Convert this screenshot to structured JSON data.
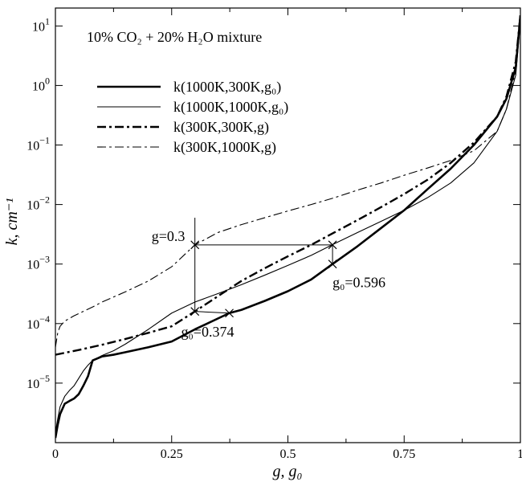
{
  "chart_data": {
    "type": "line",
    "title": "10% CO₂ + 20% H₂O mixture",
    "xlabel": "g, g₀",
    "ylabel": "k, cm⁻¹",
    "xlim": [
      0,
      1
    ],
    "ylim": [
      1e-06,
      20
    ],
    "yscale": "log",
    "grid": false,
    "legend_position": "top-left",
    "xticks": [
      {
        "value": 0,
        "label": "0"
      },
      {
        "value": 0.25,
        "label": "0.25"
      },
      {
        "value": 0.5,
        "label": "0.5"
      },
      {
        "value": 0.75,
        "label": "0.75"
      },
      {
        "value": 1,
        "label": "1"
      }
    ],
    "yticks": [
      {
        "value": 1e-05,
        "base": "10",
        "exp": "−5"
      },
      {
        "value": 0.0001,
        "base": "10",
        "exp": "−4"
      },
      {
        "value": 0.001,
        "base": "10",
        "exp": "−3"
      },
      {
        "value": 0.01,
        "base": "10",
        "exp": "−2"
      },
      {
        "value": 0.1,
        "base": "10",
        "exp": "−1"
      },
      {
        "value": 1,
        "base": "10",
        "exp": "0"
      },
      {
        "value": 10,
        "base": "10",
        "exp": "1"
      }
    ],
    "series": [
      {
        "name": "k(1000K,300K,g₀)",
        "color": "#000000",
        "width": 2.6,
        "dash": "none",
        "x": [
          0,
          0.005,
          0.01,
          0.02,
          0.03,
          0.04,
          0.05,
          0.06,
          0.07,
          0.08,
          0.1,
          0.125,
          0.15,
          0.2,
          0.25,
          0.3,
          0.374,
          0.4,
          0.45,
          0.5,
          0.55,
          0.596,
          0.65,
          0.7,
          0.75,
          0.8,
          0.85,
          0.9,
          0.95,
          0.97,
          0.99,
          1.0
        ],
        "y": [
          1.2e-06,
          2e-06,
          3e-06,
          4.5e-06,
          5e-06,
          5.5e-06,
          6.5e-06,
          9e-06,
          1.3e-05,
          2.4e-05,
          2.8e-05,
          3e-05,
          3.3e-05,
          4e-05,
          5e-05,
          8e-05,
          0.00015,
          0.00017,
          0.00024,
          0.00035,
          0.00055,
          0.001,
          0.002,
          0.004,
          0.008,
          0.018,
          0.04,
          0.1,
          0.3,
          0.6,
          2,
          15
        ]
      },
      {
        "name": "k(1000K,1000K,g₀)",
        "color": "#000000",
        "width": 1.1,
        "dash": "none",
        "x": [
          0,
          0.005,
          0.01,
          0.02,
          0.03,
          0.04,
          0.05,
          0.06,
          0.07,
          0.08,
          0.1,
          0.125,
          0.15,
          0.2,
          0.25,
          0.3,
          0.35,
          0.4,
          0.45,
          0.5,
          0.55,
          0.6,
          0.65,
          0.7,
          0.75,
          0.8,
          0.85,
          0.9,
          0.95,
          0.97,
          0.99,
          1.0
        ],
        "y": [
          1.5e-06,
          2.5e-06,
          4e-06,
          6e-06,
          7.5e-06,
          9e-06,
          1.2e-05,
          1.6e-05,
          2e-05,
          2.4e-05,
          2.9e-05,
          3.5e-05,
          4.5e-05,
          8e-05,
          0.00015,
          0.00023,
          0.00032,
          0.00045,
          0.00065,
          0.00095,
          0.0014,
          0.0022,
          0.0034,
          0.0052,
          0.008,
          0.013,
          0.023,
          0.05,
          0.17,
          0.4,
          1.5,
          12
        ]
      },
      {
        "name": "k(300K,300K,g)",
        "color": "#000000",
        "width": 2.4,
        "dash": "11,4,3,4",
        "x": [
          0,
          0.05,
          0.1,
          0.15,
          0.2,
          0.25,
          0.3,
          0.35,
          0.4,
          0.45,
          0.5,
          0.55,
          0.6,
          0.65,
          0.7,
          0.75,
          0.8,
          0.85,
          0.9,
          0.95,
          0.97,
          0.99,
          1.0
        ],
        "y": [
          3e-05,
          3.6e-05,
          4.4e-05,
          5.5e-05,
          7e-05,
          9e-05,
          0.00016,
          0.00029,
          0.00052,
          0.00085,
          0.00135,
          0.0021,
          0.0034,
          0.0055,
          0.009,
          0.015,
          0.026,
          0.05,
          0.11,
          0.3,
          0.65,
          2.5,
          15
        ]
      },
      {
        "name": "k(300K,1000K,g)",
        "color": "#000000",
        "width": 1.1,
        "dash": "11,4,3,4",
        "x": [
          0,
          0.005,
          0.01,
          0.02,
          0.04,
          0.06,
          0.08,
          0.1,
          0.15,
          0.2,
          0.25,
          0.3,
          0.35,
          0.4,
          0.45,
          0.5,
          0.55,
          0.6,
          0.65,
          0.7,
          0.75,
          0.8,
          0.85,
          0.9,
          0.95,
          0.97,
          0.99,
          1.0
        ],
        "y": [
          4e-05,
          7e-05,
          9e-05,
          0.00011,
          0.000135,
          0.00016,
          0.00019,
          0.00023,
          0.00034,
          0.00052,
          0.0009,
          0.0021,
          0.0034,
          0.0046,
          0.006,
          0.0078,
          0.01,
          0.013,
          0.0175,
          0.023,
          0.031,
          0.041,
          0.055,
          0.08,
          0.17,
          0.4,
          1.8,
          15
        ]
      }
    ],
    "annotations": [
      {
        "text": "g=0.3",
        "at": [
          0.3,
          0.0021
        ],
        "anchor": "left"
      },
      {
        "text": "g₀=0.596",
        "at": [
          0.596,
          0.001
        ],
        "anchor": "below-right"
      },
      {
        "text": "g₀=0.374",
        "at": [
          0.374,
          0.00015
        ],
        "anchor": "below"
      }
    ],
    "guide_points": [
      {
        "x": 0.3,
        "y": 0.0021
      },
      {
        "x": 0.596,
        "y": 0.0021
      },
      {
        "x": 0.596,
        "y": 0.001
      },
      {
        "x": 0.3,
        "y": 0.00016
      },
      {
        "x": 0.374,
        "y": 0.00015
      }
    ]
  }
}
